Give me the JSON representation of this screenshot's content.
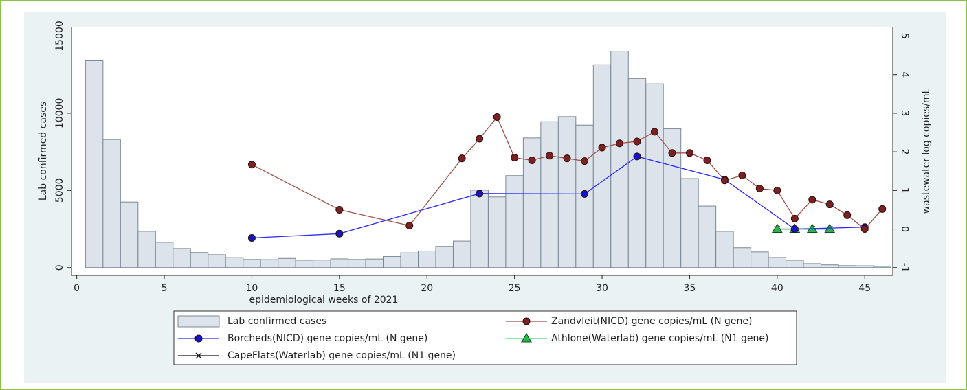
{
  "chart_data": {
    "type": "bar",
    "xlabel": "epidemiological weeks of 2021",
    "ylabel": "Lab confirmed cases",
    "y2label": "wastewater log copies/mL",
    "xlim": [
      -0.3,
      46.6
    ],
    "xticks": [
      0,
      5,
      10,
      15,
      20,
      25,
      30,
      35,
      40,
      45
    ],
    "ylim": [
      -500,
      15600
    ],
    "yticks": [
      0,
      5000,
      10000,
      15000
    ],
    "y2lim": [
      -1.2,
      5.24
    ],
    "y2ticks": [
      -1,
      0,
      1,
      2,
      3,
      4,
      5
    ],
    "grid": false,
    "series": [
      {
        "name": "Lab confirmed cases",
        "type": "bar",
        "color": "#dde3ea",
        "edgecolor": "#7a8796",
        "x": [
          1,
          2,
          3,
          4,
          5,
          6,
          7,
          8,
          9,
          10,
          11,
          12,
          13,
          14,
          15,
          16,
          17,
          18,
          19,
          20,
          21,
          22,
          23,
          24,
          25,
          26,
          27,
          28,
          29,
          30,
          31,
          32,
          33,
          34,
          35,
          36,
          37,
          38,
          39,
          40,
          41,
          42,
          43,
          44,
          45,
          46
        ],
        "values": [
          13400,
          8300,
          4250,
          2350,
          1640,
          1240,
          980,
          840,
          670,
          530,
          520,
          600,
          480,
          490,
          570,
          530,
          560,
          720,
          960,
          1080,
          1360,
          1720,
          5020,
          4580,
          5960,
          8400,
          9450,
          9780,
          9230,
          13140,
          14020,
          12250,
          11900,
          9000,
          5770,
          3990,
          2350,
          1290,
          1020,
          660,
          480,
          260,
          180,
          130,
          120,
          80
        ]
      },
      {
        "name": "Zandvleit(NICD) gene copies/mL (N gene)",
        "type": "line",
        "axis": "y2",
        "marker": "circle",
        "color": "#a0504a",
        "markercolor": "#7b2121",
        "x": [
          10,
          15,
          19,
          22,
          23,
          24,
          25,
          26,
          27,
          28,
          29,
          30,
          31,
          32,
          33,
          34,
          35,
          36,
          37,
          38,
          39,
          40,
          41,
          42,
          43,
          44,
          45,
          46
        ],
        "values": [
          1.67,
          0.5,
          0.09,
          1.83,
          2.34,
          2.9,
          1.85,
          1.78,
          1.9,
          1.83,
          1.76,
          2.11,
          2.22,
          2.27,
          2.52,
          1.97,
          1.97,
          1.78,
          1.26,
          1.39,
          1.05,
          1.0,
          0.27,
          0.76,
          0.64,
          0.36,
          0.0,
          0.52
        ]
      },
      {
        "name": "Borcheds(NICD) gene copies/mL (N gene)",
        "type": "line",
        "axis": "y2",
        "marker": "circle",
        "color": "#2a2aff",
        "markercolor": "#1515c8",
        "x": [
          10,
          15,
          23,
          29,
          32,
          37,
          41,
          45
        ],
        "values": [
          -0.23,
          -0.12,
          0.92,
          0.91,
          1.88,
          1.28,
          0.0,
          0.05
        ]
      },
      {
        "name": "Athlone(Waterlab) gene copies/mL (N1 gene)",
        "type": "line",
        "axis": "y2",
        "marker": "triangle",
        "color": "#33e07a",
        "markercolor": "#2db34a",
        "x": [
          40,
          41,
          42,
          43
        ],
        "values": [
          0,
          0,
          0,
          0
        ]
      },
      {
        "name": "CapeFlats(Waterlab) gene copies/mL (N1 gene)",
        "type": "line",
        "axis": "y2",
        "marker": "x",
        "color": "#111111",
        "markercolor": "#111111",
        "x": [
          40,
          41,
          42,
          43
        ],
        "values": [
          0,
          0,
          0,
          0
        ]
      }
    ]
  }
}
